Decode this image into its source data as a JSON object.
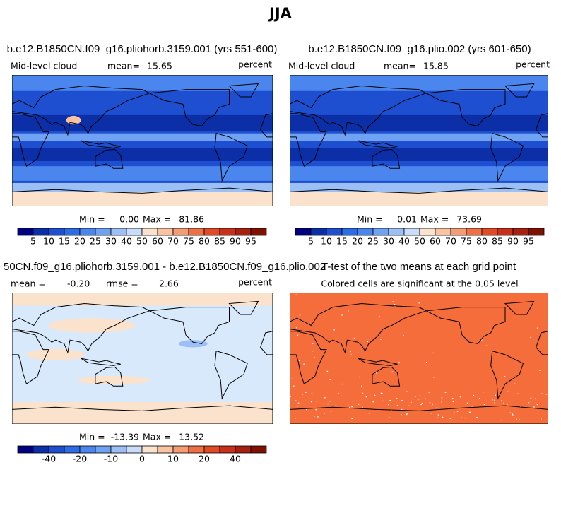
{
  "title": "JJA",
  "panels": [
    {
      "title": "b.e12.B1850CN.f09_g16.pliohorb.3159.001 (yrs 551-600)",
      "field": "Mid-level cloud",
      "mean_label": "mean=",
      "mean": "15.65",
      "units": "percent",
      "min_label": "Min =",
      "min": "0.00",
      "max_label": "Max =",
      "max": "81.86",
      "colorbar": {
        "colors": [
          "#000080",
          "#0c2fa8",
          "#1d4fd0",
          "#2c6ce6",
          "#4a86ee",
          "#6fa2f2",
          "#9cc0f6",
          "#c9ddfa",
          "#fbe2cd",
          "#f9c3a3",
          "#f49c73",
          "#ee7046",
          "#e24a26",
          "#c8301a",
          "#a8210f",
          "#801000"
        ],
        "labels": [
          5,
          10,
          15,
          20,
          25,
          30,
          40,
          50,
          60,
          70,
          75,
          80,
          85,
          90,
          95
        ]
      }
    },
    {
      "title": "b.e12.B1850CN.f09_g16.plio.002 (yrs 601-650)",
      "field": "Mid-level cloud",
      "mean_label": "mean=",
      "mean": "15.85",
      "units": "percent",
      "min_label": "Min =",
      "min": "0.01",
      "max_label": "Max =",
      "max": "73.69",
      "colorbar": {
        "colors": [
          "#000080",
          "#0c2fa8",
          "#1d4fd0",
          "#2c6ce6",
          "#4a86ee",
          "#6fa2f2",
          "#9cc0f6",
          "#c9ddfa",
          "#fbe2cd",
          "#f9c3a3",
          "#f49c73",
          "#ee7046",
          "#e24a26",
          "#c8301a",
          "#a8210f",
          "#801000"
        ],
        "labels": [
          5,
          10,
          15,
          20,
          25,
          30,
          40,
          50,
          60,
          70,
          75,
          80,
          85,
          90,
          95
        ]
      }
    },
    {
      "title": "50CN.f09_g16.pliohorb.3159.001 - b.e12.B1850CN.f09_g16.plio.002",
      "mean_label": "mean =",
      "mean": "-0.20",
      "rmse_label": "rmse =",
      "rmse": "2.66",
      "units": "percent",
      "min_label": "Min =",
      "min": "-13.39",
      "max_label": "Max =",
      "max": "13.52",
      "colorbar": {
        "colors": [
          "#000080",
          "#0c2fa8",
          "#1d4fd0",
          "#2c6ce6",
          "#4a86ee",
          "#6fa2f2",
          "#9cc0f6",
          "#c9ddfa",
          "#fbe2cd",
          "#f9c3a3",
          "#f49c73",
          "#ee7046",
          "#e24a26",
          "#c8301a",
          "#a8210f",
          "#801000"
        ],
        "labels": [
          null,
          -40,
          null,
          -20,
          null,
          -10,
          null,
          0,
          null,
          10,
          null,
          20,
          null,
          40,
          null
        ]
      }
    },
    {
      "title": "T-test of the two means at each grid point",
      "subtitle": "Colored cells are significant at the 0.05 level"
    }
  ]
}
